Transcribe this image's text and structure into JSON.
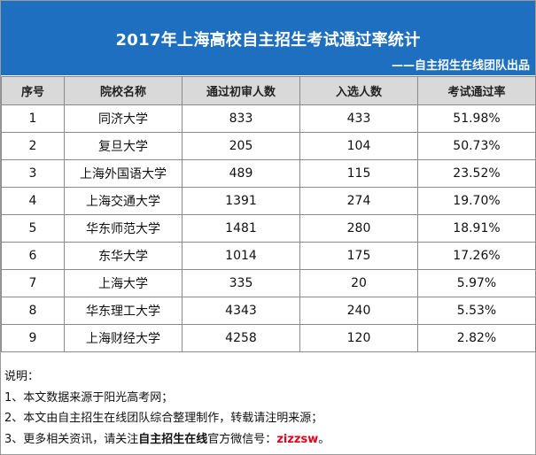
{
  "banner": {
    "title": "2017年上海高校自主招生考试通过率统计",
    "subtitle": "——自主招生在线团队出品",
    "color": "#1e6fbf"
  },
  "table": {
    "headers": [
      "序号",
      "院校名称",
      "通过初审人数",
      "入选人数",
      "考试通过率"
    ],
    "rows": [
      {
        "no": "1",
        "name": "同济大学",
        "passed": "833",
        "selected": "433",
        "rate": "51.98%"
      },
      {
        "no": "2",
        "name": "复旦大学",
        "passed": "205",
        "selected": "104",
        "rate": "50.73%"
      },
      {
        "no": "3",
        "name": "上海外国语大学",
        "passed": "489",
        "selected": "115",
        "rate": "23.52%"
      },
      {
        "no": "4",
        "name": "上海交通大学",
        "passed": "1391",
        "selected": "274",
        "rate": "19.70%"
      },
      {
        "no": "5",
        "name": "华东师范大学",
        "passed": "1481",
        "selected": "280",
        "rate": "18.91%"
      },
      {
        "no": "6",
        "name": "东华大学",
        "passed": "1014",
        "selected": "175",
        "rate": "17.26%"
      },
      {
        "no": "7",
        "name": "上海大学",
        "passed": "335",
        "selected": "20",
        "rate": "5.97%"
      },
      {
        "no": "8",
        "name": "华东理工大学",
        "passed": "4343",
        "selected": "240",
        "rate": "5.53%"
      },
      {
        "no": "9",
        "name": "上海财经大学",
        "passed": "4258",
        "selected": "120",
        "rate": "2.82%"
      }
    ]
  },
  "notes": {
    "heading": "说明：",
    "line1": "1、本文数据来源于阳光高考网；",
    "line2": "2、本文由自主招生在线团队综合整理制作，转载请注明来源；",
    "line3_prefix": "3、更多相关资讯，请关注",
    "line3_bold": "自主招生在线",
    "line3_mid": "官方微信号：",
    "line3_wechat": "zizzsw",
    "line3_end": "。",
    "wechat_color": "#e3001b"
  }
}
